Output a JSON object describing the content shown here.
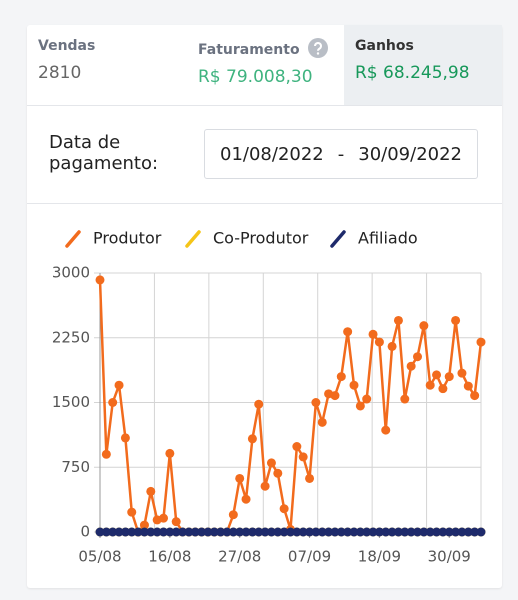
{
  "stats": [
    {
      "label": "Vendas",
      "value": "2810"
    },
    {
      "label": "Faturamento",
      "value": "R$ 79.008,30"
    },
    {
      "label": "Ganhos",
      "value": "R$ 68.245,98"
    }
  ],
  "date_filter": {
    "label": "Data de pagamento:",
    "start": "01/08/2022",
    "separator": "-",
    "end": "30/09/2022"
  },
  "chart_data": {
    "type": "line",
    "categories": [
      "05/08",
      null,
      null,
      null,
      null,
      null,
      null,
      null,
      null,
      null,
      null,
      "16/08",
      null,
      null,
      null,
      null,
      null,
      null,
      null,
      null,
      null,
      null,
      "27/08",
      null,
      null,
      null,
      null,
      null,
      null,
      null,
      null,
      null,
      null,
      "07/09",
      null,
      null,
      null,
      null,
      null,
      null,
      null,
      null,
      null,
      null,
      "18/09",
      null,
      null,
      null,
      null,
      null,
      null,
      null,
      null,
      null,
      null,
      "30/09",
      null,
      null,
      null,
      null,
      null
    ],
    "series": [
      {
        "name": "Produtor",
        "color": "#f26b1d",
        "values": [
          2920,
          900,
          1500,
          1700,
          1090,
          230,
          0,
          80,
          470,
          140,
          160,
          910,
          120,
          0,
          0,
          0,
          0,
          0,
          0,
          0,
          0,
          200,
          620,
          380,
          1080,
          1480,
          530,
          800,
          680,
          270,
          30,
          990,
          870,
          620,
          1500,
          1270,
          1600,
          1580,
          1800,
          2320,
          1700,
          1460,
          1540,
          2290,
          2200,
          1180,
          2150,
          2450,
          1540,
          1920,
          2030,
          2390,
          1700,
          1820,
          1660,
          1800,
          2450,
          1840,
          1690,
          1580,
          2200
        ]
      },
      {
        "name": "Co-Produtor",
        "color": "#f5c518",
        "values": [
          0,
          0,
          0,
          0,
          0,
          0,
          0,
          0,
          0,
          0,
          0,
          0,
          0,
          0,
          0,
          0,
          0,
          0,
          0,
          0,
          0,
          0,
          0,
          0,
          0,
          0,
          0,
          0,
          0,
          0,
          0,
          0,
          0,
          0,
          0,
          0,
          0,
          0,
          0,
          0,
          0,
          0,
          0,
          0,
          0,
          0,
          0,
          0,
          0,
          0,
          0,
          0,
          0,
          0,
          0,
          0,
          0,
          0,
          0,
          0,
          0
        ]
      },
      {
        "name": "Afiliado",
        "color": "#1e2a6b",
        "values": [
          0,
          0,
          0,
          0,
          0,
          0,
          0,
          0,
          0,
          0,
          0,
          0,
          0,
          0,
          0,
          0,
          0,
          0,
          0,
          0,
          0,
          0,
          0,
          0,
          0,
          0,
          0,
          0,
          0,
          0,
          0,
          0,
          0,
          0,
          0,
          0,
          0,
          0,
          0,
          0,
          0,
          0,
          0,
          0,
          0,
          0,
          0,
          0,
          0,
          0,
          0,
          0,
          0,
          0,
          0,
          0,
          0,
          0,
          0,
          0,
          0
        ]
      }
    ],
    "ylim": [
      0,
      3000
    ],
    "yticks": [
      0,
      750,
      1500,
      2250,
      3000
    ],
    "grid": true
  }
}
